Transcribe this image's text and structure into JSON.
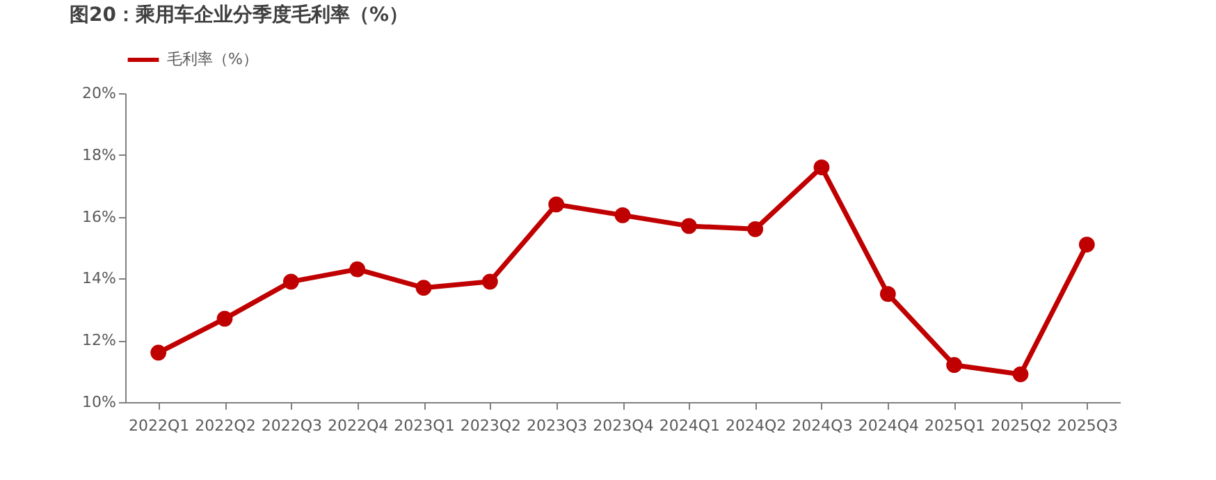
{
  "chart_data": {
    "type": "line",
    "title": "图20：乘用车企业分季度毛利率（%）",
    "categories": [
      "2022Q1",
      "2022Q2",
      "2022Q3",
      "2022Q4",
      "2023Q1",
      "2023Q2",
      "2023Q3",
      "2023Q4",
      "2024Q1",
      "2024Q2",
      "2024Q3",
      "2024Q4",
      "2025Q1",
      "2025Q2",
      "2025Q3"
    ],
    "series": [
      {
        "name": "毛利率（%）",
        "color": "#c00000",
        "values": [
          11.6,
          12.7,
          13.9,
          14.3,
          13.7,
          13.9,
          16.4,
          16.05,
          15.7,
          15.6,
          17.6,
          13.5,
          11.2,
          10.9,
          15.1
        ]
      }
    ],
    "ylim": [
      10,
      20
    ],
    "yticks": [
      {
        "value": 10,
        "label": "10%"
      },
      {
        "value": 12,
        "label": "12%"
      },
      {
        "value": 14,
        "label": "14%"
      },
      {
        "value": 16,
        "label": "16%"
      },
      {
        "value": 18,
        "label": "18%"
      },
      {
        "value": 20,
        "label": "20%"
      }
    ],
    "grid": false,
    "legend": "top",
    "marker": "circle",
    "line_style": "solid"
  }
}
